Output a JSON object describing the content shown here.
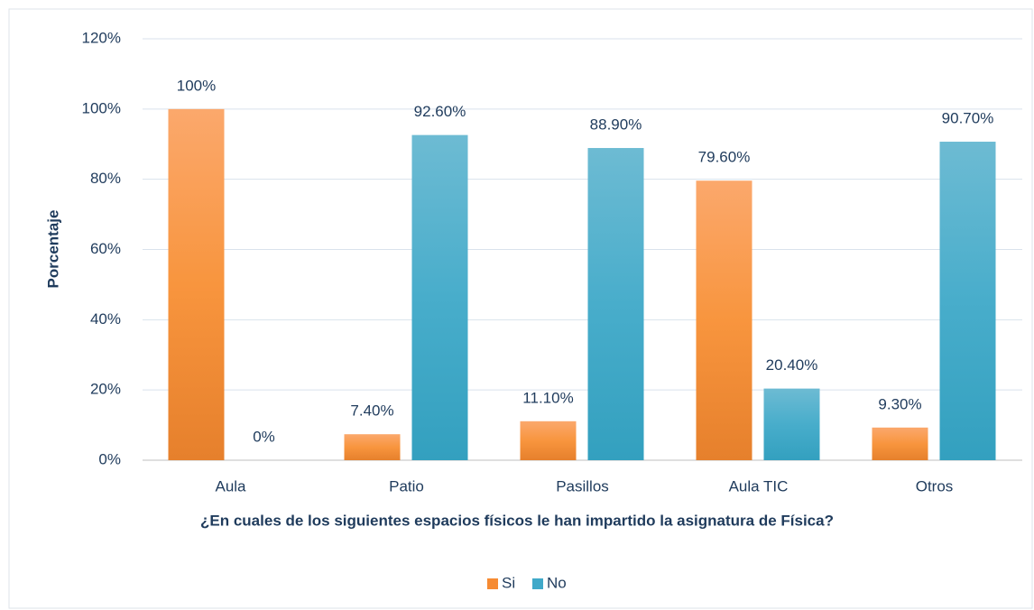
{
  "chart_data": {
    "type": "bar",
    "x_label": "¿En cuales de los siguientes espacios físicos le han impartido la asignatura de Física?",
    "y_label": "Porcentaje",
    "categories": [
      "Aula",
      "Patio",
      "Pasillos",
      "Aula TIC",
      "Otros"
    ],
    "series": [
      {
        "name": "Si",
        "color": "#f68b33",
        "values": [
          100,
          7.4,
          11.1,
          79.6,
          9.3
        ],
        "value_labels": [
          "100%",
          "7.40%",
          "11.10%",
          "79.60%",
          "9.30%"
        ]
      },
      {
        "name": "No",
        "color": "#40a9c9",
        "values": [
          0,
          92.6,
          88.9,
          20.4,
          90.7
        ],
        "value_labels": [
          "0%",
          "92.60%",
          "88.90%",
          "20.40%",
          "90.70%"
        ]
      }
    ],
    "ylim": [
      0,
      120
    ],
    "yticks": [
      {
        "value": 0,
        "label": "0%"
      },
      {
        "value": 20,
        "label": "20%"
      },
      {
        "value": 40,
        "label": "40%"
      },
      {
        "value": 60,
        "label": "60%"
      },
      {
        "value": 80,
        "label": "80%"
      },
      {
        "value": 100,
        "label": "100%"
      },
      {
        "value": 120,
        "label": "120%"
      }
    ],
    "grid": true,
    "legend": "bottom"
  }
}
